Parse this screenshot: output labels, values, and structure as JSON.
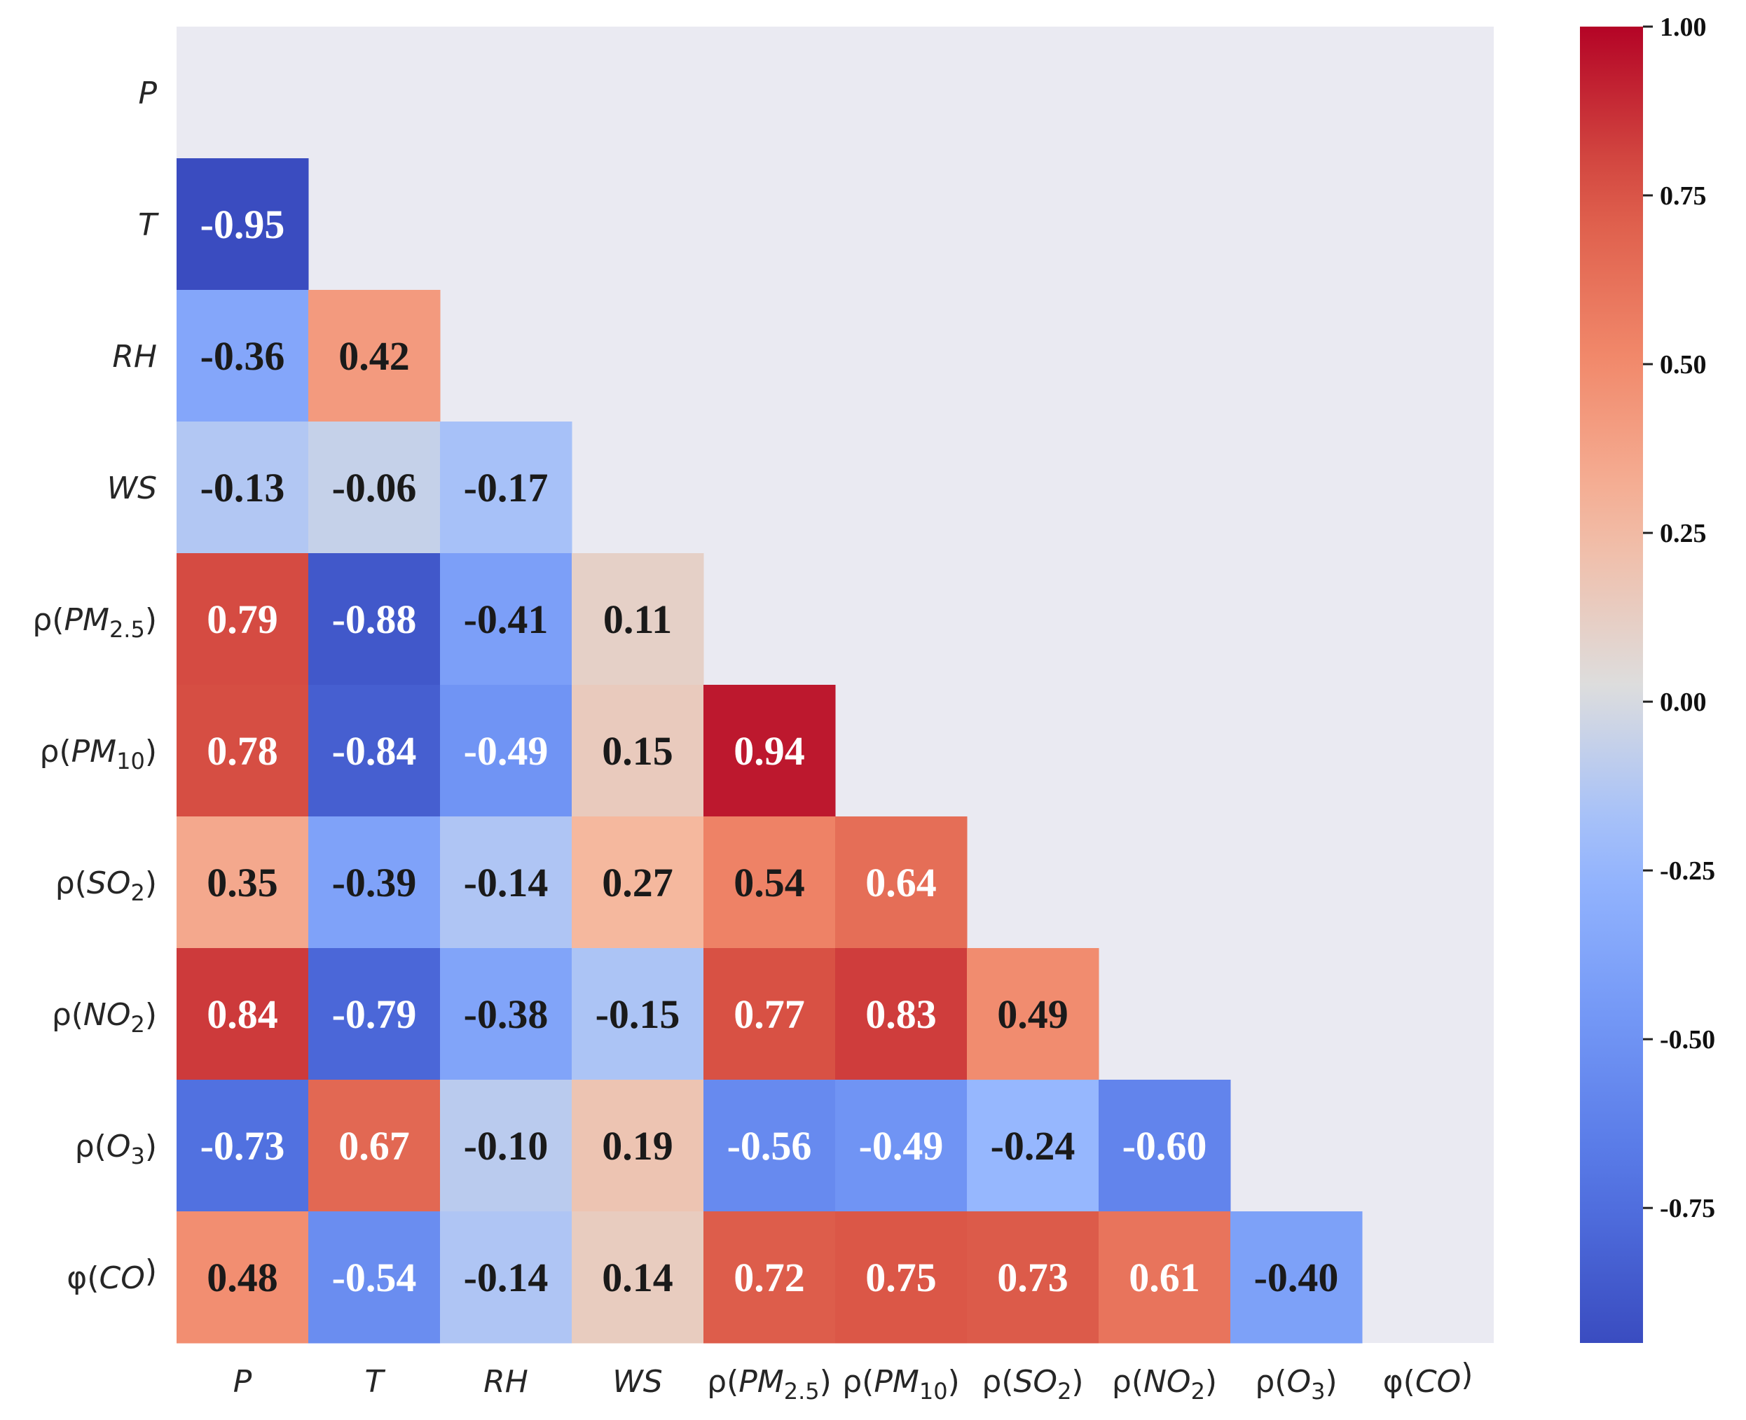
{
  "chart_data": {
    "type": "heatmap",
    "title": "",
    "variables": [
      {
        "base": "P",
        "prefix": "",
        "sub": ""
      },
      {
        "base": "T",
        "prefix": "",
        "sub": ""
      },
      {
        "base": "RH",
        "prefix": "",
        "sub": ""
      },
      {
        "base": "WS",
        "prefix": "",
        "sub": ""
      },
      {
        "base": "PM",
        "prefix": "ρ",
        "sub": "2.5"
      },
      {
        "base": "PM",
        "prefix": "ρ",
        "sub": "10"
      },
      {
        "base": "SO",
        "prefix": "ρ",
        "sub": "2"
      },
      {
        "base": "NO",
        "prefix": "ρ",
        "sub": "2"
      },
      {
        "base": "O",
        "prefix": "ρ",
        "sub": "3"
      },
      {
        "base": "CO",
        "prefix": "φ",
        "sub": ""
      }
    ],
    "mask": "upper-triangle-including-diagonal",
    "lower_triangle": [
      [],
      [
        -0.95
      ],
      [
        -0.36,
        0.42
      ],
      [
        -0.13,
        -0.06,
        -0.17
      ],
      [
        0.79,
        -0.88,
        -0.41,
        0.11
      ],
      [
        0.78,
        -0.84,
        -0.49,
        0.15,
        0.94
      ],
      [
        0.35,
        -0.39,
        -0.14,
        0.27,
        0.54,
        0.64
      ],
      [
        0.84,
        -0.79,
        -0.38,
        -0.15,
        0.77,
        0.83,
        0.49
      ],
      [
        -0.73,
        0.67,
        -0.1,
        0.19,
        -0.56,
        -0.49,
        -0.24,
        -0.6
      ],
      [
        0.48,
        -0.54,
        -0.14,
        0.14,
        0.72,
        0.75,
        0.73,
        0.61,
        -0.4
      ]
    ],
    "colormap": "coolwarm",
    "vmin": -0.95,
    "vmax": 1.0,
    "colorbar": {
      "ticks": [
        1.0,
        0.75,
        0.5,
        0.25,
        0.0,
        -0.25,
        -0.5,
        -0.75
      ],
      "tick_labels": [
        "1.00",
        "0.75",
        "0.50",
        "0.25",
        "0.00",
        "-0.25",
        "-0.50",
        "-0.75"
      ]
    },
    "xlabel": "",
    "ylabel": "",
    "masked_color": "#eaeaf2"
  }
}
